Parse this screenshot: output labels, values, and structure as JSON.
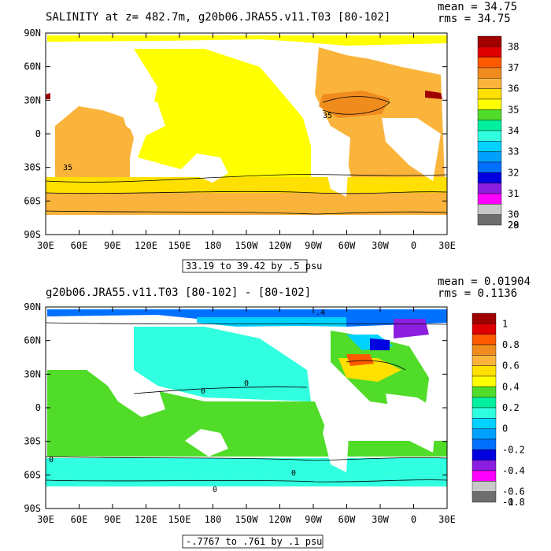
{
  "chart_data": [
    {
      "type": "heatmap",
      "title": "SALINITY at z= 482.7m, g20b06.JRA55.v11.T03 [80-102]",
      "stats": [
        "mean = 34.75",
        "rms = 34.75"
      ],
      "range_note": "33.19 to 39.42 by .5 psu",
      "x_ticks": [
        "30E",
        "60E",
        "90E",
        "120E",
        "150E",
        "180",
        "150W",
        "120W",
        "90W",
        "60W",
        "30W",
        "0",
        "30E"
      ],
      "y_ticks": [
        "90N",
        "60N",
        "30N",
        "0",
        "30S",
        "60S",
        "90S"
      ],
      "xlim": [
        30,
        390
      ],
      "ylim": [
        -90,
        90
      ],
      "colorbar": {
        "labels": [
          "38",
          "37",
          "36",
          "35",
          "34",
          "33",
          "32",
          "31",
          "30",
          "29",
          "28"
        ],
        "colors": [
          "#a00000",
          "#e00000",
          "#ff5a00",
          "#f08c1e",
          "#fab43c",
          "#ffe000",
          "#ffff00",
          "#50dc28",
          "#00f0a0",
          "#30ffe0",
          "#00d2ff",
          "#00a0ff",
          "#0070ff",
          "#0000e0",
          "#8c1ee0",
          "#ff00ff",
          "#c8c8c8",
          "#6e6e6e"
        ]
      },
      "contour_labels": [
        "35",
        "35"
      ]
    },
    {
      "type": "heatmap",
      "title": "g20b06.JRA55.v11.T03 [80-102] -  [80-102]",
      "stats": [
        "mean = 0.01904",
        "rms = 0.1136"
      ],
      "range_note": "-.7767 to .761 by .1 psu",
      "x_ticks": [
        "30E",
        "60E",
        "90E",
        "120E",
        "150E",
        "180",
        "150W",
        "120W",
        "90W",
        "60W",
        "30W",
        "0",
        "30E"
      ],
      "y_ticks": [
        "90N",
        "60N",
        "30N",
        "0",
        "30S",
        "60S",
        "90S"
      ],
      "xlim": [
        30,
        390
      ],
      "ylim": [
        -90,
        90
      ],
      "colorbar": {
        "labels": [
          "1",
          "0.8",
          "0.6",
          "0.4",
          "0.2",
          "0",
          "-0.2",
          "-0.4",
          "-0.6",
          "-0.8",
          "-1"
        ],
        "colors": [
          "#a00000",
          "#e00000",
          "#ff5a00",
          "#f08c1e",
          "#fab43c",
          "#ffe000",
          "#ffff00",
          "#50dc28",
          "#00f0a0",
          "#30ffe0",
          "#00d2ff",
          "#00a0ff",
          "#0070ff",
          "#0000e0",
          "#8c1ee0",
          "#ff00ff",
          "#c8c8c8",
          "#6e6e6e"
        ]
      },
      "contour_labels": [
        "0",
        "0",
        "0",
        "0",
        "0",
        "-.4"
      ]
    }
  ]
}
